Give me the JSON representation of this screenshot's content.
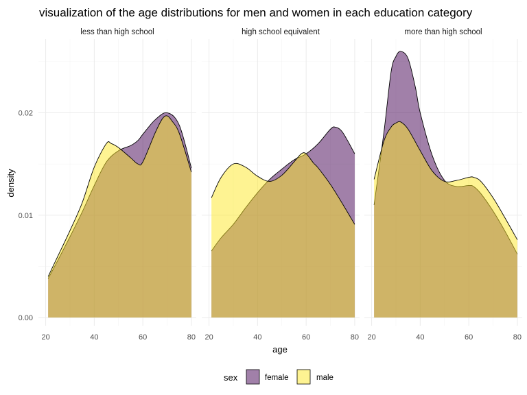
{
  "chart_data": {
    "type": "area",
    "subtype": "faceted density",
    "title": "visualization of the age distributions for men and women in each education category",
    "xlabel": "age",
    "ylabel": "density",
    "xlim": [
      17,
      82
    ],
    "ylim": [
      -0.0008,
      0.0272
    ],
    "x_ticks": [
      20,
      40,
      60,
      80
    ],
    "y_ticks": [
      0.0,
      0.01,
      0.02
    ],
    "y_tick_labels": [
      "0.00",
      "0.01",
      "0.02"
    ],
    "grid": true,
    "legend": {
      "title": "sex",
      "position": "bottom"
    },
    "series": [
      {
        "name": "female",
        "color": "#440154",
        "opacity": 0.5
      },
      {
        "name": "male",
        "color": "#FDE725",
        "opacity": 0.5
      }
    ],
    "panels": [
      {
        "label": "less than high school",
        "female": {
          "x": [
            21,
            25,
            30,
            35,
            40,
            45,
            50,
            55,
            58,
            60,
            65,
            70,
            75,
            80
          ],
          "y": [
            0.0038,
            0.0056,
            0.0079,
            0.0103,
            0.0129,
            0.0152,
            0.0163,
            0.0168,
            0.0173,
            0.0179,
            0.0193,
            0.02,
            0.0188,
            0.0146
          ]
        },
        "male": {
          "x": [
            21,
            25,
            30,
            35,
            40,
            45,
            47,
            50,
            55,
            58,
            60,
            65,
            68,
            70,
            72,
            75,
            80
          ],
          "y": [
            0.004,
            0.006,
            0.0085,
            0.0112,
            0.0147,
            0.017,
            0.017,
            0.0166,
            0.0156,
            0.015,
            0.0152,
            0.018,
            0.0194,
            0.0197,
            0.0192,
            0.018,
            0.0142
          ]
        }
      },
      {
        "label": "high school equivalent",
        "female": {
          "x": [
            21,
            25,
            30,
            35,
            40,
            45,
            50,
            55,
            60,
            65,
            70,
            72,
            75,
            80
          ],
          "y": [
            0.0065,
            0.0078,
            0.0091,
            0.0107,
            0.0122,
            0.0135,
            0.0145,
            0.0154,
            0.016,
            0.017,
            0.0184,
            0.0186,
            0.0181,
            0.016
          ]
        },
        "male": {
          "x": [
            21,
            25,
            30,
            35,
            40,
            45,
            50,
            55,
            58,
            60,
            63,
            65,
            70,
            75,
            80
          ],
          "y": [
            0.0117,
            0.0137,
            0.015,
            0.0147,
            0.0138,
            0.0133,
            0.0139,
            0.0152,
            0.016,
            0.016,
            0.0151,
            0.0146,
            0.013,
            0.0111,
            0.0091
          ]
        }
      },
      {
        "label": "more than high school",
        "female": {
          "x": [
            21,
            25,
            28,
            30,
            32,
            35,
            38,
            40,
            45,
            50,
            55,
            60,
            62,
            65,
            70,
            75,
            80
          ],
          "y": [
            0.011,
            0.018,
            0.024,
            0.0255,
            0.026,
            0.0253,
            0.0225,
            0.02,
            0.0158,
            0.0134,
            0.0128,
            0.0129,
            0.0128,
            0.0121,
            0.0104,
            0.0084,
            0.0062
          ]
        },
        "male": {
          "x": [
            21,
            25,
            28,
            30,
            32,
            35,
            40,
            45,
            50,
            55,
            60,
            62,
            65,
            70,
            75,
            80
          ],
          "y": [
            0.0135,
            0.0172,
            0.0186,
            0.019,
            0.0191,
            0.0184,
            0.0163,
            0.0143,
            0.0133,
            0.0134,
            0.0137,
            0.0137,
            0.0133,
            0.0117,
            0.0097,
            0.0076
          ]
        }
      }
    ]
  }
}
